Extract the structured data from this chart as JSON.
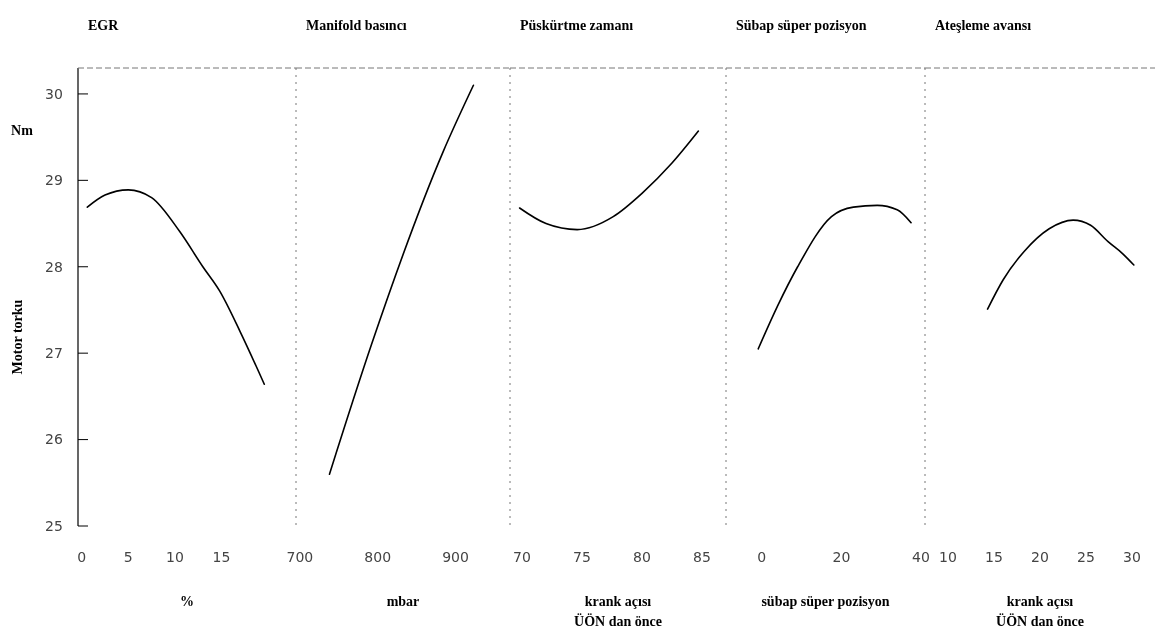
{
  "chart_data": [
    {
      "type": "line",
      "title": "EGR",
      "xlabel": "%",
      "ylabel": "Motor torku",
      "annotations": [
        "Nm"
      ],
      "xlim": [
        -0.4,
        23
      ],
      "xticks": [
        0,
        5,
        10,
        15
      ],
      "ylim": [
        25,
        30.3
      ],
      "yticks": [
        25,
        26,
        27,
        28,
        29,
        30
      ],
      "grid": false,
      "marker": "none",
      "line_style": "solid",
      "series": [
        {
          "color": "#000000",
          "x": [
            0.6,
            2.5,
            5,
            7.5,
            10.5,
            13,
            14.8,
            17,
            19.6
          ],
          "values": [
            28.69,
            28.83,
            28.89,
            28.8,
            28.41,
            28.0,
            27.72,
            27.25,
            26.64
          ]
        }
      ]
    },
    {
      "type": "line",
      "title": "Manifold basıncı",
      "xlabel": "mbar",
      "xlim": [
        695,
        970
      ],
      "xticks": [
        700,
        800,
        900
      ],
      "ylim": [
        25,
        30.3
      ],
      "tick_labels": "x",
      "grid": false,
      "marker": "none",
      "line_style": "solid",
      "series": [
        {
          "color": "#000000",
          "x": [
            738,
            792,
            884,
            923
          ],
          "values": [
            25.6,
            27.1,
            29.33,
            30.1
          ]
        }
      ]
    },
    {
      "type": "line",
      "title": "Püskürtme zamanı",
      "xlabel": "krank açısı\nÜÖN dan önce",
      "xlim": [
        69,
        87
      ],
      "xticks": [
        70,
        75,
        80,
        85
      ],
      "ylim": [
        25,
        30.3
      ],
      "tick_labels": "x",
      "grid": false,
      "marker": "none",
      "line_style": "solid",
      "series": [
        {
          "color": "#000000",
          "x": [
            69.8,
            72,
            74.6,
            77.6,
            80,
            82.5,
            84.7
          ],
          "values": [
            28.68,
            28.5,
            28.43,
            28.58,
            28.85,
            29.2,
            29.57
          ]
        }
      ]
    },
    {
      "type": "line",
      "title": "Sübap süper pozisyon",
      "xlabel": "sübap süper pozisyon",
      "xlim": [
        -9,
        41
      ],
      "xticks": [
        0,
        20,
        40
      ],
      "ylim": [
        25,
        30.3
      ],
      "tick_labels": "x",
      "grid": false,
      "marker": "none",
      "line_style": "solid",
      "series": [
        {
          "color": "#000000",
          "x": [
            -0.9,
            4,
            9,
            17.5,
            23,
            29,
            34,
            37.5
          ],
          "values": [
            27.05,
            27.55,
            28.0,
            28.58,
            28.69,
            28.71,
            28.66,
            28.51
          ]
        }
      ]
    },
    {
      "type": "line",
      "title": "Ateşleme avansı",
      "xlabel": "krank açısı\nÜÖN dan önce",
      "xlim": [
        7.5,
        32.5
      ],
      "xticks": [
        10,
        15,
        20,
        25,
        30
      ],
      "ylim": [
        25,
        30.3
      ],
      "tick_labels": "x",
      "grid": false,
      "marker": "none",
      "line_style": "solid",
      "series": [
        {
          "color": "#000000",
          "x": [
            14.3,
            16,
            18.3,
            21,
            23.6,
            25.5,
            27.4,
            29,
            30.2
          ],
          "values": [
            27.51,
            27.85,
            28.18,
            28.44,
            28.54,
            28.48,
            28.29,
            28.15,
            28.02
          ]
        }
      ]
    }
  ]
}
